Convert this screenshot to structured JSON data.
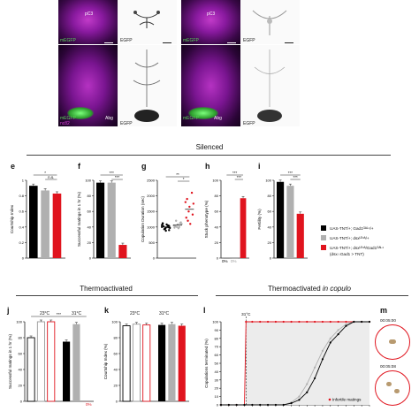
{
  "figure": {
    "micro_labels": {
      "pc3_a": "pC3",
      "pc3_b": "pC3",
      "egfp_a": "EGFP",
      "egfp_b": "EGFP",
      "egfp_c": "EGFP",
      "egfp_d": "EGFP",
      "megfp_a": "mEGFP",
      "megfp_b": "mEGFP",
      "megfp_c": "mEGFP",
      "megfp_d": "mEGFP",
      "abg_a": "Abg",
      "abg_b": "Abg",
      "nc82": "nc82"
    },
    "section_silenced": "Silenced",
    "section_thermo": "Thermoactivated",
    "section_thermo_copulo_a": "Thermoactivated ",
    "section_thermo_copulo_b": "in copulo",
    "panels": {
      "e": "e",
      "f": "f",
      "g": "g",
      "h": "h",
      "i": "i",
      "j": "j",
      "k": "k",
      "l": "l",
      "m": "m"
    },
    "legend": [
      {
        "label": "UAS-TNT/+; Gad1ᴳᴬᴸ⁴/+",
        "color": "#000000"
      },
      {
        "label": "UAS-TNT/+; dsxᴸᴱˣᴬ/+",
        "color": "#b0b0b0"
      },
      {
        "label": "UAS-TNT/+; dsxᴸᴱˣᴬ/Gad1ᴳᴬᴸ⁴",
        "color": "#e0141e"
      },
      {
        "label": "(dsx∩Gad1 > TNT)",
        "color": ""
      }
    ],
    "temps": {
      "t23": "23°C",
      "t31": "31°C",
      "t23b": "23°C",
      "t31b": "31°C",
      "t31c": "31°C"
    },
    "timestamps": {
      "top": "00:05:00",
      "bottom": "00:05:08"
    },
    "infertile_label": "Infertile matings",
    "zero_pct_a": "0%",
    "zero_pct_b": "0%",
    "zero_pct_c": "0%"
  },
  "chart_data": [
    {
      "type": "bar",
      "panel": "e",
      "ylabel": "Courtship Index",
      "ylim": [
        0,
        1
      ],
      "yticks": [
        "0",
        "0.2",
        "0.4",
        "0.6",
        "0.8",
        "1"
      ],
      "series": [
        {
          "values": [
            0.93,
            0.87,
            0.83
          ]
        }
      ],
      "colors": [
        "#000000",
        "#b0b0b0",
        "#e0141e"
      ],
      "sig": [
        "*",
        "n.s."
      ]
    },
    {
      "type": "bar",
      "panel": "f",
      "ylabel": "Successful matings in 1 hr (%)",
      "ylim": [
        0,
        100
      ],
      "yticks": [
        "0",
        "20",
        "40",
        "60",
        "80",
        "100"
      ],
      "series": [
        {
          "values": [
            97,
            97,
            17
          ]
        }
      ],
      "colors": [
        "#000000",
        "#b0b0b0",
        "#e0141e"
      ],
      "sig": [
        "***",
        "***"
      ]
    },
    {
      "type": "scatter",
      "panel": "g",
      "ylabel": "Copulation Duration (sec)",
      "ylim": [
        0,
        2500
      ],
      "yticks": [
        "0",
        "500",
        "1000",
        "1500",
        "2000",
        "2500"
      ],
      "groups": [
        {
          "values": [
            1000,
            950,
            1050,
            1100,
            980,
            900,
            1020,
            1080,
            970,
            930,
            1010,
            1060,
            940,
            990,
            1120,
            880,
            1030
          ]
        },
        {
          "values": [
            1050,
            1000,
            1120,
            980,
            1080,
            1150,
            1020,
            960,
            1100,
            1200,
            1000
          ]
        },
        {
          "values": [
            1800,
            1500,
            2100,
            1300,
            1650,
            1400,
            1900,
            1100,
            1750,
            1200
          ]
        }
      ],
      "colors": [
        "#000000",
        "#b0b0b0",
        "#e0141e"
      ],
      "sig": [
        "**",
        "*"
      ]
    },
    {
      "type": "bar",
      "panel": "h",
      "ylabel": "Stuck phenotype (%)",
      "ylim": [
        0,
        100
      ],
      "yticks": [
        "0",
        "20",
        "40",
        "60",
        "80",
        "100"
      ],
      "series": [
        {
          "values": [
            0,
            0,
            77
          ]
        }
      ],
      "colors": [
        "#000000",
        "#b0b0b0",
        "#e0141e"
      ],
      "sig": [
        "***",
        "***"
      ]
    },
    {
      "type": "bar",
      "panel": "i",
      "ylabel": "Fertility (%)",
      "ylim": [
        0,
        100
      ],
      "yticks": [
        "0",
        "20",
        "40",
        "60",
        "80",
        "100"
      ],
      "series": [
        {
          "values": [
            98,
            93,
            57
          ]
        }
      ],
      "colors": [
        "#000000",
        "#b0b0b0",
        "#e0141e"
      ],
      "sig": [
        "***",
        "***"
      ]
    },
    {
      "type": "bar",
      "panel": "j",
      "ylabel": "Successful matings in 1 hr (%)",
      "ylim": [
        0,
        100
      ],
      "yticks": [
        "0",
        "20",
        "40",
        "60",
        "80",
        "100"
      ],
      "series": [
        {
          "values": [
            80,
            100,
            100,
            75,
            97,
            0
          ]
        }
      ],
      "colors": [
        "#000000",
        "#b0b0b0",
        "#e0141e",
        "#000000",
        "#b0b0b0",
        "#e0141e"
      ],
      "outlined": [
        true,
        true,
        true,
        false,
        false,
        false
      ],
      "sig": [
        "***"
      ]
    },
    {
      "type": "bar",
      "panel": "k",
      "ylabel": "Courtship Index (%)",
      "ylim": [
        0,
        100
      ],
      "yticks": [
        "0",
        "20",
        "40",
        "60",
        "80",
        "100"
      ],
      "series": [
        {
          "values": [
            95,
            97,
            96,
            96,
            97,
            95
          ]
        }
      ],
      "colors": [
        "#000000",
        "#b0b0b0",
        "#e0141e",
        "#000000",
        "#b0b0b0",
        "#e0141e"
      ],
      "outlined": [
        true,
        true,
        true,
        false,
        false,
        false
      ]
    },
    {
      "type": "line",
      "panel": "l",
      "ylabel": "Copulations terminated (%)",
      "ylim": [
        0,
        100
      ],
      "yticks": [
        "0",
        "10",
        "20",
        "30",
        "40",
        "50",
        "60",
        "70",
        "80",
        "90",
        "100"
      ],
      "series": [
        {
          "color": "#e0141e",
          "x": [
            0,
            1,
            2,
            3,
            3.2,
            4,
            5,
            6,
            7,
            8,
            9,
            10,
            11,
            12,
            13,
            14,
            15,
            16,
            17,
            18,
            19
          ],
          "y": [
            0,
            0,
            0,
            0,
            100,
            100,
            100,
            100,
            100,
            100,
            100,
            100,
            100,
            100,
            100,
            100,
            100,
            100,
            100,
            100,
            100
          ]
        },
        {
          "color": "#b0b0b0",
          "x": [
            0,
            1,
            2,
            3,
            4,
            5,
            6,
            7,
            8,
            9,
            10,
            11,
            12,
            13,
            14,
            15,
            16,
            17,
            18,
            19
          ],
          "y": [
            0,
            0,
            0,
            0,
            0,
            0,
            0,
            0,
            0,
            3,
            10,
            25,
            45,
            65,
            80,
            90,
            97,
            100,
            100,
            100
          ]
        },
        {
          "color": "#000000",
          "x": [
            0,
            1,
            2,
            3,
            4,
            5,
            6,
            7,
            8,
            9,
            10,
            11,
            12,
            13,
            14,
            15,
            16,
            17,
            18,
            19
          ],
          "y": [
            0,
            0,
            0,
            0,
            0,
            0,
            0,
            0,
            0,
            2,
            6,
            15,
            32,
            55,
            75,
            85,
            95,
            100,
            100,
            100
          ]
        }
      ]
    }
  ]
}
